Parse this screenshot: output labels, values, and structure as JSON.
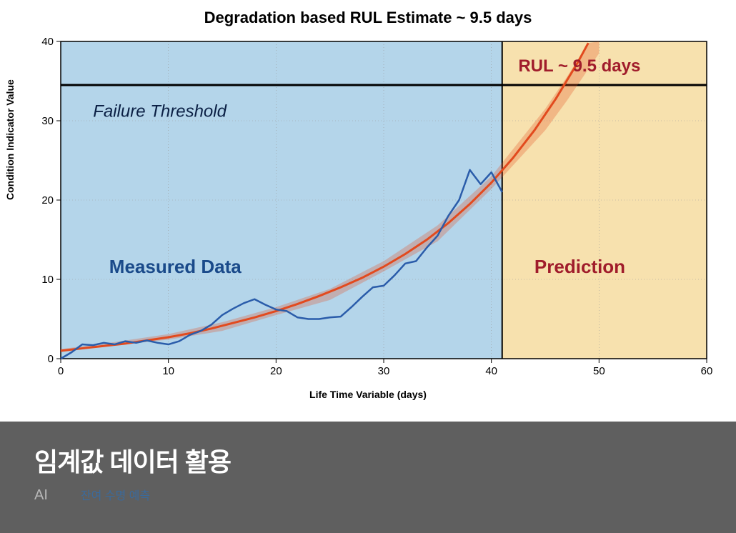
{
  "chart": {
    "type": "line",
    "title": "Degradation based RUL Estimate ~ 9.5 days",
    "x_axis_label": "Life Time Variable (days)",
    "y_axis_label": "Condition Indicator Value",
    "xlim": [
      0,
      60
    ],
    "ylim": [
      0,
      40
    ],
    "xtick_step": 10,
    "ytick_step": 10,
    "xticks": [
      0,
      10,
      20,
      30,
      40,
      50,
      60
    ],
    "yticks": [
      0,
      10,
      20,
      30,
      40
    ],
    "grid_color": "#999999",
    "axis_color": "#000000",
    "tick_fontsize": 15,
    "title_fontsize": 22,
    "label_fontsize": 14,
    "measured_region": {
      "x_range": [
        0,
        41
      ],
      "fill": "#b4d5ea"
    },
    "prediction_region": {
      "x_range": [
        41,
        60
      ],
      "fill": "#f7e1ae"
    },
    "failure_threshold": {
      "label": "Failure Threshold",
      "value": 34.5,
      "line_color": "#000000",
      "line_width": 3,
      "label_color": "#0a1f44",
      "label_fontsize": 24,
      "label_fontstyle": "italic"
    },
    "rul_annotation": {
      "text": "RUL ~ 9.5 days",
      "color": "#a01c2b",
      "fontsize": 24,
      "fontweight": "bold"
    },
    "measured_label": {
      "text": "Measured Data",
      "color": "#1a4a8a",
      "fontsize": 26,
      "fontweight": "bold"
    },
    "prediction_label": {
      "text": "Prediction",
      "color": "#a01c2b",
      "fontsize": 26,
      "fontweight": "bold"
    },
    "measured_series": {
      "color": "#2a5caa",
      "line_width": 2.5,
      "x": [
        0,
        1,
        2,
        3,
        4,
        5,
        6,
        7,
        8,
        9,
        10,
        11,
        12,
        13,
        14,
        15,
        16,
        17,
        18,
        19,
        20,
        21,
        22,
        23,
        24,
        25,
        26,
        27,
        28,
        29,
        30,
        31,
        32,
        33,
        34,
        35,
        36,
        37,
        38,
        39,
        40,
        41
      ],
      "y": [
        -0.5,
        0.8,
        1.8,
        1.7,
        2.0,
        1.8,
        2.2,
        2.0,
        2.3,
        2.0,
        1.8,
        2.2,
        3.0,
        3.5,
        4.3,
        5.5,
        6.3,
        7.0,
        7.5,
        6.8,
        6.2,
        6.0,
        5.2,
        5.0,
        5.0,
        5.2,
        5.3,
        6.5,
        7.8,
        9.0,
        9.2,
        10.5,
        12.0,
        12.3,
        14.0,
        15.5,
        18.0,
        20.0,
        23.8,
        22.0,
        23.5,
        21.0
      ]
    },
    "fit_curve": {
      "color": "#e24a1e",
      "line_width": 3,
      "x": [
        0,
        2,
        4,
        6,
        8,
        10,
        12,
        14,
        16,
        18,
        20,
        22,
        24,
        26,
        28,
        30,
        32,
        34,
        36,
        38,
        40,
        42,
        44,
        46,
        48,
        49,
        50
      ],
      "y": [
        1.0,
        1.3,
        1.6,
        1.9,
        2.3,
        2.7,
        3.2,
        3.8,
        4.5,
        5.2,
        6.0,
        6.9,
        7.9,
        9.0,
        10.2,
        11.6,
        13.2,
        15.0,
        17.1,
        19.5,
        22.2,
        25.3,
        28.8,
        32.8,
        37.3,
        39.8,
        42.5
      ]
    },
    "fit_band": {
      "fill": "#e24a1e",
      "opacity": 0.28,
      "x": [
        0,
        5,
        10,
        15,
        20,
        25,
        30,
        35,
        40,
        45,
        47,
        49,
        50
      ],
      "y_upper": [
        1.2,
        2.1,
        3.1,
        4.6,
        6.5,
        8.8,
        12.3,
        16.8,
        23.0,
        31.5,
        35.5,
        39.8,
        42.5
      ],
      "y_lower": [
        0.8,
        1.7,
        2.4,
        3.5,
        5.5,
        7.4,
        11.0,
        14.8,
        21.4,
        28.8,
        32.5,
        36.5,
        38.5
      ]
    },
    "vertical_divider": {
      "x": 41,
      "color": "#000000",
      "width": 2
    }
  },
  "footer": {
    "title": "임계값 데이터 활용",
    "tag_primary": "AI",
    "tag_secondary": "잔여 수명 예측",
    "background": "#5f5f5f",
    "title_color": "#ffffff",
    "title_fontsize": 36,
    "tag_primary_color": "#b8b8b8",
    "tag_secondary_color": "#3b6a9b"
  }
}
